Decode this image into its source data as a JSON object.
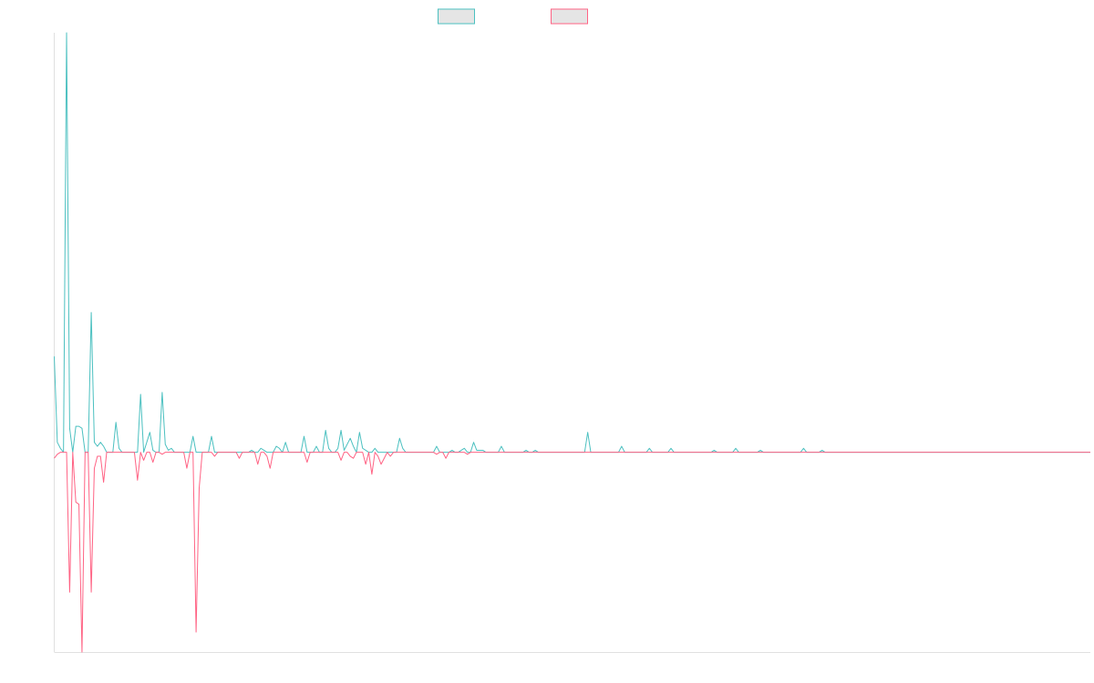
{
  "chart_data": {
    "type": "line",
    "title": "",
    "xlabel": "",
    "ylabel": "",
    "grid": false,
    "legend_position": "top-center",
    "x": [
      0,
      1,
      2,
      3,
      4,
      5,
      6,
      7,
      8,
      9,
      10,
      11,
      12,
      13,
      14,
      15,
      16,
      17,
      18,
      19,
      20,
      21,
      22,
      23,
      24,
      25,
      26,
      27,
      28,
      29,
      30,
      31,
      32,
      33,
      34,
      35,
      36,
      37,
      38,
      39,
      40,
      41,
      42,
      43,
      44,
      45,
      46,
      47,
      48,
      49,
      50,
      51,
      52,
      53,
      54,
      55,
      56,
      57,
      58,
      59,
      60,
      61,
      62,
      63,
      64,
      65,
      66,
      67,
      68,
      69,
      70,
      71,
      72,
      73,
      74,
      75,
      76,
      77,
      78,
      79,
      80,
      81,
      82,
      83,
      84,
      85,
      86,
      87,
      88,
      89,
      90,
      91,
      92,
      93,
      94,
      95,
      96,
      97,
      98,
      99,
      100,
      101,
      102,
      103,
      104,
      105,
      106,
      107,
      108,
      109,
      110,
      111,
      112,
      113,
      114,
      115,
      116,
      117,
      118,
      119,
      120,
      121,
      122,
      123,
      124,
      125,
      126,
      127,
      128,
      129,
      130,
      131,
      132,
      133,
      134,
      135,
      136,
      137,
      138,
      139,
      140,
      141,
      142,
      143,
      144,
      145,
      146,
      147,
      148,
      149,
      150,
      151,
      152,
      153,
      154,
      155,
      156,
      157,
      158,
      159,
      160,
      161,
      162,
      163,
      164,
      165,
      166,
      167,
      168,
      169,
      170,
      171,
      172,
      173,
      174,
      175,
      176,
      177,
      178,
      179,
      180,
      181,
      182,
      183,
      184,
      185,
      186,
      187,
      188,
      189,
      190,
      191,
      192,
      193,
      194,
      195,
      196,
      197,
      198,
      199,
      200,
      201,
      202,
      203,
      204,
      205,
      206,
      207,
      208,
      209,
      210,
      211,
      212,
      213,
      214,
      215,
      216,
      217,
      218,
      219,
      220,
      221,
      222,
      223,
      224,
      225,
      226,
      227,
      228,
      229,
      230,
      231,
      232,
      233,
      234,
      235,
      236,
      237,
      238,
      239,
      240,
      241,
      242,
      243,
      244,
      245,
      246,
      247,
      248,
      249,
      250,
      251,
      252,
      253,
      254,
      255,
      256,
      257,
      258,
      259,
      260,
      261,
      262,
      263,
      264,
      265,
      266,
      267,
      268,
      269,
      270,
      271,
      272,
      273,
      274,
      275,
      276,
      277,
      278,
      279,
      280,
      281,
      282,
      283,
      284,
      285,
      286,
      287,
      288,
      289,
      290,
      291,
      292,
      293,
      294,
      295,
      296,
      297,
      298,
      299,
      300,
      301,
      302,
      303,
      304,
      305,
      306,
      307,
      308,
      309,
      310,
      311,
      312,
      313,
      314,
      315,
      316,
      317,
      318,
      319,
      320,
      321,
      322,
      323,
      324,
      325,
      326,
      327,
      328,
      329,
      330,
      331,
      332,
      333,
      334,
      335,
      336
    ],
    "ylim": [
      -100,
      210
    ],
    "xlim": [
      0,
      336
    ],
    "series": [
      {
        "name": "",
        "color": "#4bc0c0",
        "values": [
          48,
          5,
          2,
          0,
          210,
          12,
          0,
          13,
          13,
          12,
          0,
          0,
          70,
          5,
          3,
          5,
          3,
          0,
          0,
          0,
          15,
          2,
          0,
          0,
          0,
          0,
          0,
          0,
          29,
          0,
          5,
          10,
          1,
          0,
          0,
          30,
          4,
          1,
          2,
          0,
          0,
          0,
          0,
          0,
          0,
          8,
          0,
          0,
          0,
          0,
          0,
          8,
          0,
          0,
          0,
          0,
          0,
          0,
          0,
          0,
          0,
          0,
          0,
          0,
          1,
          0,
          0,
          2,
          1,
          0,
          0,
          0,
          3,
          2,
          0,
          5,
          0,
          0,
          0,
          0,
          0,
          8,
          0,
          0,
          0,
          3,
          0,
          0,
          11,
          2,
          0,
          0,
          2,
          11,
          1,
          4,
          7,
          3,
          0,
          10,
          2,
          1,
          0,
          0,
          2,
          0,
          0,
          0,
          0,
          0,
          0,
          0,
          7,
          2,
          0,
          0,
          0,
          0,
          0,
          0,
          0,
          0,
          0,
          0,
          3,
          0,
          0,
          0,
          0,
          1,
          0,
          0,
          1,
          2,
          0,
          0,
          5,
          1,
          1,
          1,
          0,
          0,
          0,
          0,
          0,
          3,
          0,
          0,
          0,
          0,
          0,
          0,
          0,
          1,
          0,
          0,
          1,
          0,
          0,
          0,
          0,
          0,
          0,
          0,
          0,
          0,
          0,
          0,
          0,
          0,
          0,
          0,
          0,
          10,
          0,
          0,
          0,
          0,
          0,
          0,
          0,
          0,
          0,
          0,
          3,
          0,
          0,
          0,
          0,
          0,
          0,
          0,
          0,
          2,
          0,
          0,
          0,
          0,
          0,
          0,
          2,
          0,
          0,
          0,
          0,
          0,
          0,
          0,
          0,
          0,
          0,
          0,
          0,
          0,
          1,
          0,
          0,
          0,
          0,
          0,
          0,
          2,
          0,
          0,
          0,
          0,
          0,
          0,
          0,
          1,
          0,
          0,
          0,
          0,
          0,
          0,
          0,
          0,
          0,
          0,
          0,
          0,
          0,
          2,
          0,
          0,
          0,
          0,
          0,
          1,
          0,
          0,
          0,
          0,
          0,
          0,
          0,
          0,
          0,
          0,
          0,
          0,
          0,
          0,
          0,
          0,
          0,
          0,
          0,
          0,
          0,
          0,
          0,
          0,
          0,
          0,
          0,
          0,
          0,
          0,
          0,
          0,
          0,
          0,
          0,
          0,
          0,
          0,
          0,
          0,
          0,
          0,
          0,
          0,
          0,
          0,
          0,
          0,
          0,
          0,
          0,
          0,
          0,
          0,
          0,
          0,
          0,
          0,
          0,
          0,
          0,
          0,
          0,
          0,
          0,
          0,
          0,
          0,
          0,
          0,
          0,
          0,
          0,
          0,
          0,
          0,
          0,
          0,
          0,
          0,
          0,
          0,
          0,
          0,
          0,
          0,
          0
        ]
      },
      {
        "name": "",
        "color": "#ff6384",
        "values": [
          -3,
          -1,
          0,
          0,
          0,
          -70,
          0,
          -25,
          -26,
          -100,
          0,
          0,
          -70,
          -8,
          -2,
          -2,
          -15,
          0,
          0,
          0,
          0,
          0,
          0,
          0,
          0,
          0,
          0,
          -14,
          0,
          -4,
          0,
          0,
          -5,
          0,
          0,
          -1,
          0,
          0,
          0,
          0,
          0,
          0,
          0,
          -8,
          0,
          0,
          -90,
          -18,
          0,
          0,
          0,
          0,
          -2,
          0,
          0,
          0,
          0,
          0,
          0,
          0,
          -3,
          0,
          0,
          0,
          0,
          0,
          -6,
          0,
          0,
          -2,
          -8,
          0,
          0,
          0,
          0,
          0,
          0,
          0,
          0,
          0,
          0,
          0,
          -5,
          0,
          0,
          0,
          0,
          0,
          0,
          0,
          0,
          0,
          0,
          -4,
          0,
          0,
          -2,
          -3,
          0,
          0,
          0,
          -6,
          0,
          -11,
          0,
          -2,
          -6,
          -3,
          0,
          -2,
          0,
          0,
          0,
          0,
          0,
          0,
          0,
          0,
          0,
          0,
          0,
          0,
          0,
          0,
          -1,
          0,
          0,
          -3,
          0,
          0,
          0,
          0,
          0,
          0,
          -1,
          0,
          0,
          0,
          0,
          0,
          0,
          0,
          0,
          0,
          0,
          0,
          0,
          0,
          0,
          0,
          0,
          0,
          0,
          0,
          0,
          0,
          0,
          0,
          0,
          0,
          0,
          0,
          0,
          0,
          0,
          0,
          0,
          0,
          0,
          0,
          0,
          0,
          0,
          0,
          0,
          0,
          0,
          0,
          0,
          0,
          0,
          0,
          0,
          0,
          0,
          0,
          0,
          0,
          0,
          0,
          0,
          0,
          0,
          0,
          0,
          0,
          0,
          0,
          0,
          0,
          0,
          0,
          0,
          0,
          0,
          0,
          0,
          0,
          0,
          0,
          0,
          0,
          0,
          0,
          0,
          0,
          0,
          0,
          0,
          0,
          0,
          0,
          0,
          0,
          0,
          0,
          0,
          0,
          0,
          0,
          0,
          0,
          0,
          0,
          0,
          0,
          0,
          0,
          0,
          0,
          0,
          0,
          0,
          0,
          0,
          0,
          0,
          0,
          0,
          0,
          0,
          0,
          0,
          0,
          0,
          0,
          0,
          0,
          0,
          0,
          0,
          0,
          0,
          0,
          0,
          0,
          0,
          0,
          0,
          0,
          0,
          0,
          0,
          0,
          0,
          0,
          0,
          0,
          0,
          0,
          0,
          0,
          0,
          0,
          0,
          0,
          0,
          0,
          0,
          0,
          0,
          0,
          0,
          0,
          0,
          0,
          0,
          0,
          0,
          0,
          0,
          0,
          0,
          0,
          0,
          0,
          0,
          0,
          0,
          0,
          0,
          0,
          0,
          0,
          0,
          0,
          0,
          0,
          0,
          0,
          0,
          0,
          0,
          0,
          0,
          0,
          0,
          0,
          0,
          0,
          0,
          0,
          0,
          0,
          0,
          0,
          0
        ]
      }
    ]
  }
}
